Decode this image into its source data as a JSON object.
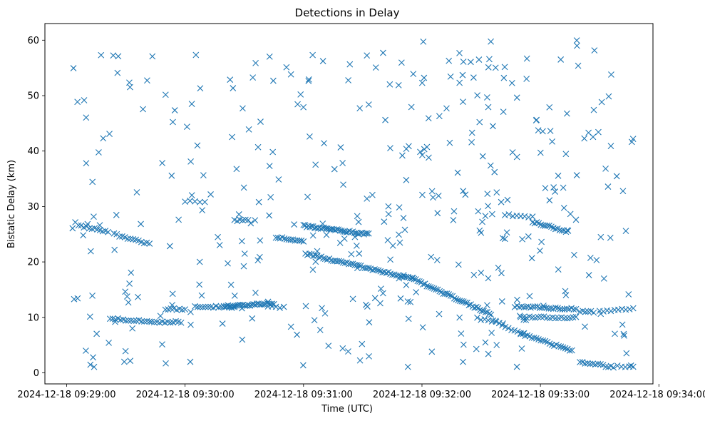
{
  "chart_data": {
    "type": "scatter",
    "title": "Detections in Delay",
    "xlabel": "Time (UTC)",
    "ylabel": "Bistatic Delay (km)",
    "x_unit": "seconds since 2024-12-18 09:28:00",
    "xlim": [
      49,
      357
    ],
    "ylim": [
      -2,
      63
    ],
    "xticks": [
      {
        "value": 60,
        "label": "2024-12-18 09:29:00"
      },
      {
        "value": 120,
        "label": "2024-12-18 09:30:00"
      },
      {
        "value": 180,
        "label": "2024-12-18 09:31:00"
      },
      {
        "value": 240,
        "label": "2024-12-18 09:32:00"
      },
      {
        "value": 300,
        "label": "2024-12-18 09:33:00"
      },
      {
        "value": 360,
        "label": "2024-12-18 09:34:00"
      }
    ],
    "yticks": [
      0,
      10,
      20,
      30,
      40,
      50,
      60
    ],
    "marker": "x",
    "marker_color": "#1f77b4",
    "tracks": [
      {
        "name": "track-1",
        "x_start": 66,
        "x_end": 81,
        "y_start": 26.5,
        "y_end": 25.5,
        "count": 12
      },
      {
        "name": "track-2",
        "x_start": 84,
        "x_end": 102,
        "y_start": 25.0,
        "y_end": 23.2,
        "count": 14
      },
      {
        "name": "track-3",
        "x_start": 82,
        "x_end": 102,
        "y_start": 9.8,
        "y_end": 9.2,
        "count": 16
      },
      {
        "name": "track-4",
        "x_start": 103,
        "x_end": 118,
        "y_start": 9.2,
        "y_end": 9.2,
        "count": 12
      },
      {
        "name": "track-5",
        "x_start": 110,
        "x_end": 120,
        "y_start": 11.5,
        "y_end": 11.5,
        "count": 8
      },
      {
        "name": "track-6",
        "x_start": 120,
        "x_end": 130,
        "y_start": 31.0,
        "y_end": 30.8,
        "count": 5
      },
      {
        "name": "track-7",
        "x_start": 125,
        "x_end": 145,
        "y_start": 12.0,
        "y_end": 11.8,
        "count": 16
      },
      {
        "name": "track-8",
        "x_start": 140,
        "x_end": 165,
        "y_start": 12.0,
        "y_end": 12.5,
        "count": 30
      },
      {
        "name": "track-9",
        "x_start": 145,
        "x_end": 152,
        "y_start": 27.5,
        "y_end": 27.5,
        "count": 6
      },
      {
        "name": "track-10",
        "x_start": 166,
        "x_end": 180,
        "y_start": 24.5,
        "y_end": 23.8,
        "count": 14
      },
      {
        "name": "track-11",
        "x_start": 162,
        "x_end": 170,
        "y_start": 12.0,
        "y_end": 11.8,
        "count": 5
      },
      {
        "name": "track-12",
        "x_start": 180,
        "x_end": 213,
        "y_start": 26.5,
        "y_end": 25.0,
        "count": 42
      },
      {
        "name": "track-13",
        "x_start": 181,
        "x_end": 235,
        "y_start": 21.5,
        "y_end": 17.0,
        "count": 55
      },
      {
        "name": "track-14",
        "x_start": 235,
        "x_end": 275,
        "y_start": 17.0,
        "y_end": 10.5,
        "count": 44
      },
      {
        "name": "track-15",
        "x_start": 268,
        "x_end": 281,
        "y_start": 9.8,
        "y_end": 9.0,
        "count": 8
      },
      {
        "name": "track-16",
        "x_start": 282,
        "x_end": 296,
        "y_start": 28.5,
        "y_end": 28.0,
        "count": 8
      },
      {
        "name": "track-17",
        "x_start": 296,
        "x_end": 314,
        "y_start": 27.2,
        "y_end": 25.5,
        "count": 18
      },
      {
        "name": "track-18",
        "x_start": 287,
        "x_end": 318,
        "y_start": 12.0,
        "y_end": 11.5,
        "count": 28
      },
      {
        "name": "track-19",
        "x_start": 290,
        "x_end": 318,
        "y_start": 10.0,
        "y_end": 10.0,
        "count": 20
      },
      {
        "name": "track-20",
        "x_start": 276,
        "x_end": 290,
        "y_start": 9.5,
        "y_end": 7.0,
        "count": 10
      },
      {
        "name": "track-21",
        "x_start": 290,
        "x_end": 316,
        "y_start": 7.0,
        "y_end": 4.0,
        "count": 24
      },
      {
        "name": "track-22",
        "x_start": 320,
        "x_end": 337,
        "y_start": 2.0,
        "y_end": 1.0,
        "count": 14
      },
      {
        "name": "track-23",
        "x_start": 339,
        "x_end": 347,
        "y_start": 1.2,
        "y_end": 1.0,
        "count": 5
      },
      {
        "name": "track-24",
        "x_start": 320,
        "x_end": 327,
        "y_start": 11.0,
        "y_end": 11.0,
        "count": 6
      },
      {
        "name": "track-25",
        "x_start": 330,
        "x_end": 347,
        "y_start": 11.2,
        "y_end": 11.5,
        "count": 10
      }
    ],
    "clutter": {
      "count": 380,
      "x_range": [
        63,
        347
      ],
      "y_range": [
        1,
        60
      ],
      "seed": 20241218
    }
  }
}
